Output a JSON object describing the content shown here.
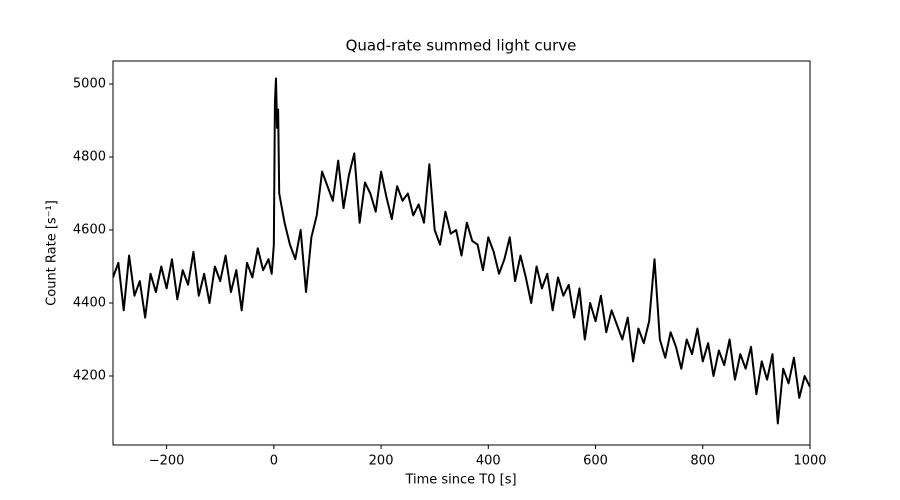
{
  "chart_data": {
    "type": "line",
    "title": "Quad-rate summed light curve",
    "xlabel": "Time since T0 [s]",
    "ylabel": "Count Rate [s⁻¹]",
    "color": "#000000",
    "grid": false,
    "x": [
      -300,
      -290,
      -280,
      -270,
      -260,
      -250,
      -240,
      -230,
      -220,
      -210,
      -200,
      -190,
      -180,
      -170,
      -160,
      -150,
      -140,
      -130,
      -120,
      -110,
      -100,
      -90,
      -80,
      -70,
      -60,
      -50,
      -40,
      -30,
      -20,
      -10,
      -4,
      0,
      2,
      4,
      6,
      8,
      10,
      20,
      30,
      40,
      50,
      60,
      70,
      80,
      90,
      100,
      110,
      120,
      130,
      140,
      150,
      160,
      170,
      180,
      190,
      200,
      210,
      220,
      230,
      240,
      250,
      260,
      270,
      280,
      290,
      300,
      310,
      320,
      330,
      340,
      350,
      360,
      370,
      380,
      390,
      400,
      410,
      420,
      430,
      440,
      450,
      460,
      470,
      480,
      490,
      500,
      510,
      520,
      530,
      540,
      550,
      560,
      570,
      580,
      590,
      600,
      610,
      620,
      630,
      640,
      650,
      660,
      670,
      680,
      690,
      700,
      710,
      720,
      730,
      740,
      750,
      760,
      770,
      780,
      790,
      800,
      810,
      820,
      830,
      840,
      850,
      860,
      870,
      880,
      890,
      900,
      910,
      920,
      930,
      940,
      950,
      960,
      970,
      980,
      990,
      1000
    ],
    "values": [
      4470,
      4510,
      4380,
      4530,
      4420,
      4460,
      4360,
      4480,
      4430,
      4500,
      4440,
      4520,
      4410,
      4490,
      4450,
      4540,
      4420,
      4480,
      4400,
      4500,
      4460,
      4530,
      4430,
      4490,
      4380,
      4510,
      4470,
      4550,
      4490,
      4520,
      4480,
      4560,
      4950,
      5015,
      4880,
      4930,
      4700,
      4620,
      4560,
      4520,
      4600,
      4430,
      4580,
      4640,
      4760,
      4720,
      4680,
      4790,
      4660,
      4750,
      4810,
      4620,
      4730,
      4700,
      4650,
      4760,
      4690,
      4630,
      4720,
      4680,
      4700,
      4640,
      4670,
      4620,
      4780,
      4600,
      4560,
      4650,
      4590,
      4600,
      4530,
      4620,
      4570,
      4560,
      4490,
      4580,
      4540,
      4480,
      4520,
      4580,
      4460,
      4530,
      4470,
      4400,
      4500,
      4440,
      4480,
      4380,
      4470,
      4420,
      4450,
      4360,
      4440,
      4300,
      4400,
      4350,
      4420,
      4320,
      4380,
      4340,
      4300,
      4360,
      4240,
      4330,
      4290,
      4350,
      4520,
      4300,
      4250,
      4320,
      4280,
      4220,
      4300,
      4260,
      4330,
      4240,
      4290,
      4200,
      4270,
      4230,
      4300,
      4190,
      4260,
      4220,
      4280,
      4150,
      4240,
      4190,
      4260,
      4070,
      4220,
      4180,
      4250,
      4140,
      4200,
      4170
    ],
    "xlim": [
      -300,
      1000
    ],
    "xticks": [
      {
        "value": -200,
        "label": "−200"
      },
      0,
      200,
      400,
      600,
      800,
      1000
    ],
    "ylim": [
      4011,
      5063
    ],
    "yticks": [
      4200,
      4400,
      4600,
      4800,
      5000
    ]
  }
}
